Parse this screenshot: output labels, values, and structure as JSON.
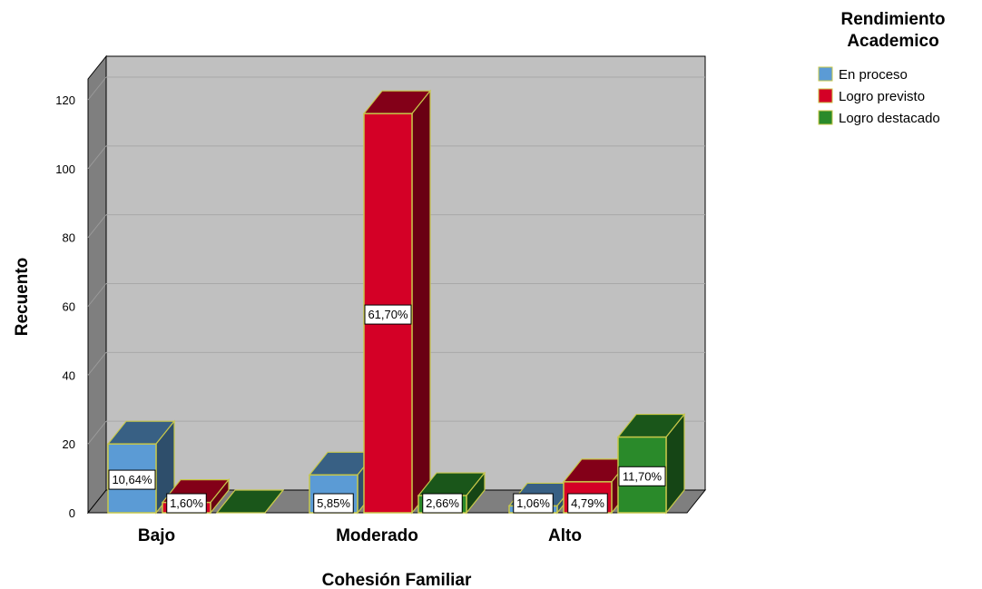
{
  "chart_data": {
    "type": "bar",
    "style": "3d-clustered",
    "categories": [
      "Bajo",
      "Moderado",
      "Alto"
    ],
    "series": [
      {
        "name": "En proceso",
        "color": "#5b9bd5",
        "values": [
          20,
          11,
          2
        ],
        "labels": [
          "10,64%",
          "5,85%",
          "1,06%"
        ]
      },
      {
        "name": "Logro previsto",
        "color": "#d40026",
        "values": [
          3,
          116,
          9
        ],
        "labels": [
          "1,60%",
          "61,70%",
          "4,79%"
        ]
      },
      {
        "name": "Logro destacado",
        "color": "#2a8a2a",
        "values": [
          0,
          5,
          22
        ],
        "labels": [
          "",
          "2,66%",
          "11,70%"
        ]
      }
    ],
    "xlabel": "Cohesión Familiar",
    "ylabel": "Recuento",
    "ylim": [
      0,
      120
    ],
    "yticks": [
      "0",
      "20",
      "40",
      "60",
      "80",
      "100",
      "120"
    ],
    "legend_title": "Rendimiento Academico",
    "legend_position": "top-right",
    "grid": true
  }
}
